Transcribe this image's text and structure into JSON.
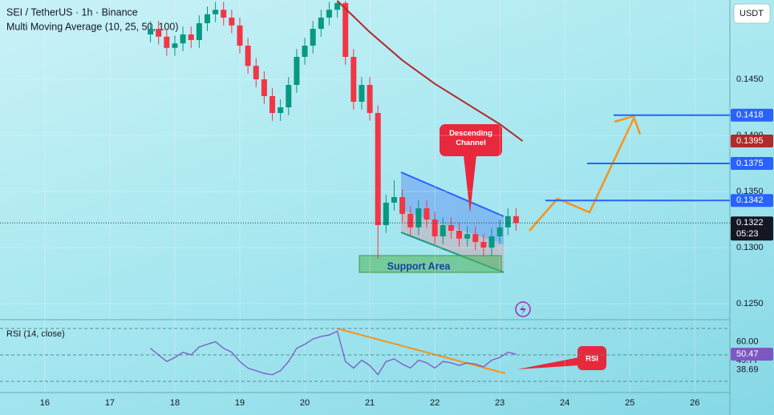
{
  "header": {
    "symbol": "SEI / TetherUS · 1h · Binance",
    "indicator": "Multi Moving Average (10, 25, 50, 100)",
    "currency": "USDT"
  },
  "chart_data": [
    {
      "type": "candlestick",
      "x": [
        17.625,
        17.75,
        17.875,
        18,
        18.125,
        18.25,
        18.375,
        18.5,
        18.625,
        18.75,
        18.875,
        19,
        19.125,
        19.25,
        19.375,
        19.5,
        19.625,
        19.75,
        19.875,
        20,
        20.125,
        20.25,
        20.375,
        20.5,
        20.625,
        20.75,
        20.875,
        21,
        21.125,
        21.25,
        21.375,
        21.5,
        21.625,
        21.75,
        21.875,
        22,
        22.125,
        22.25,
        22.375,
        22.5,
        22.625,
        22.75,
        22.875,
        23,
        23.125,
        23.25
      ],
      "open": [
        0.149,
        0.1495,
        0.1488,
        0.1478,
        0.1482,
        0.149,
        0.1485,
        0.15,
        0.1508,
        0.1512,
        0.1505,
        0.1498,
        0.148,
        0.1462,
        0.145,
        0.1435,
        0.142,
        0.1425,
        0.1445,
        0.147,
        0.148,
        0.1495,
        0.1505,
        0.1512,
        0.1518,
        0.147,
        0.143,
        0.1445,
        0.142,
        0.132,
        0.134,
        0.1345,
        0.133,
        0.1318,
        0.1335,
        0.1325,
        0.131,
        0.132,
        0.1315,
        0.1308,
        0.1312,
        0.1305,
        0.13,
        0.131,
        0.1318,
        0.1328
      ],
      "high": [
        0.1502,
        0.1502,
        0.1495,
        0.1489,
        0.1497,
        0.1497,
        0.1507,
        0.1515,
        0.1519,
        0.1519,
        0.1512,
        0.1505,
        0.1487,
        0.1469,
        0.1457,
        0.1442,
        0.1432,
        0.1452,
        0.1477,
        0.1487,
        0.1502,
        0.1512,
        0.1519,
        0.152,
        0.152,
        0.1477,
        0.1452,
        0.1452,
        0.1427,
        0.1347,
        0.136,
        0.1352,
        0.1337,
        0.1342,
        0.1342,
        0.1332,
        0.1327,
        0.1327,
        0.1322,
        0.1319,
        0.1319,
        0.1312,
        0.1317,
        0.1325,
        0.1335,
        0.1335
      ],
      "low": [
        0.1483,
        0.1481,
        0.1471,
        0.1471,
        0.1475,
        0.1478,
        0.1478,
        0.1493,
        0.1501,
        0.1498,
        0.1491,
        0.1473,
        0.1455,
        0.1443,
        0.1428,
        0.1413,
        0.1413,
        0.1418,
        0.1438,
        0.1463,
        0.1473,
        0.1488,
        0.1498,
        0.1505,
        0.1463,
        0.1423,
        0.1423,
        0.1413,
        0.129,
        0.1313,
        0.1333,
        0.1323,
        0.1311,
        0.1311,
        0.1318,
        0.1303,
        0.1303,
        0.1308,
        0.1301,
        0.1301,
        0.1298,
        0.1293,
        0.1293,
        0.1303,
        0.1311,
        0.1315
      ],
      "close": [
        0.1495,
        0.1488,
        0.1478,
        0.1482,
        0.149,
        0.1485,
        0.15,
        0.1508,
        0.1512,
        0.1505,
        0.1498,
        0.148,
        0.1462,
        0.145,
        0.1435,
        0.142,
        0.1425,
        0.1445,
        0.147,
        0.148,
        0.1495,
        0.1505,
        0.1512,
        0.1518,
        0.147,
        0.143,
        0.1445,
        0.142,
        0.132,
        0.134,
        0.1345,
        0.133,
        0.1318,
        0.1335,
        0.1325,
        0.131,
        0.132,
        0.1315,
        0.1308,
        0.1312,
        0.1305,
        0.13,
        0.131,
        0.1318,
        0.1328,
        0.1322
      ],
      "up_color": "#089981",
      "down_color": "#f23645",
      "xlim": [
        15.31,
        26.54
      ],
      "ylim": [
        0.12386,
        0.15207
      ],
      "xticks": [
        16,
        17,
        18,
        19,
        20,
        21,
        22,
        23,
        24,
        25,
        26
      ],
      "yticks": [
        {
          "value": 0.145,
          "label": "0.1450"
        },
        {
          "value": 0.14,
          "label": "0.1400"
        },
        {
          "value": 0.135,
          "label": "0.1350"
        },
        {
          "value": 0.13,
          "label": "0.1300"
        },
        {
          "value": 0.125,
          "label": "0.1250"
        }
      ],
      "ma": {
        "color": "#b22a2a",
        "x": [
          20.5,
          21,
          21.5,
          22,
          22.5,
          23,
          23.35
        ],
        "values": [
          0.152,
          0.1492,
          0.1467,
          0.1446,
          0.1428,
          0.141,
          0.1395
        ]
      },
      "targets": {
        "color": "#2962ff",
        "values": [
          0.1418,
          0.1375,
          0.1342
        ]
      },
      "last_price": 0.1322,
      "countdown": "05:23",
      "annotations": [
        "Descending Channel",
        "Support Area"
      ]
    },
    {
      "type": "line",
      "title": "RSI (14, close)",
      "color": "#7e57c2",
      "x": [
        17.625,
        17.75,
        17.875,
        18,
        18.125,
        18.25,
        18.375,
        18.5,
        18.625,
        18.75,
        18.875,
        19,
        19.125,
        19.25,
        19.375,
        19.5,
        19.625,
        19.75,
        19.875,
        20,
        20.125,
        20.25,
        20.375,
        20.5,
        20.625,
        20.75,
        20.875,
        21,
        21.125,
        21.25,
        21.375,
        21.5,
        21.625,
        21.75,
        21.875,
        22,
        22.125,
        22.25,
        22.375,
        22.5,
        22.625,
        22.75,
        22.875,
        23,
        23.125,
        23.25
      ],
      "values": [
        55,
        50,
        45,
        48,
        52,
        50,
        56,
        58,
        60,
        55,
        52,
        45,
        40,
        38,
        36,
        35,
        38,
        45,
        55,
        58,
        62,
        64,
        65,
        68,
        45,
        40,
        46,
        42,
        35,
        45,
        47,
        43,
        40,
        46,
        44,
        40,
        45,
        44,
        42,
        44,
        43,
        41,
        46,
        48,
        52,
        50.47
      ],
      "ylim": [
        21.5,
        73
      ],
      "levels": [
        70,
        50,
        30
      ],
      "yticks": [
        {
          "value": 60,
          "label": "60.00"
        },
        45.77,
        38.69
      ],
      "current": 50.47,
      "annotations": [
        "RSI"
      ]
    }
  ]
}
